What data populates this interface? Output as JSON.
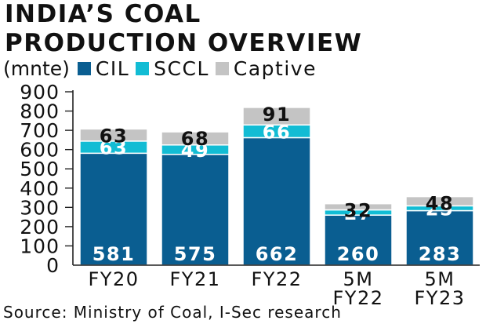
{
  "title_line1": "INDIA’S COAL",
  "title_line2": "PRODUCTION OVERVIEW",
  "unit": "(mnte)",
  "source": "Source: Ministry of Coal, I-Sec research",
  "colors": {
    "CIL": "#0a5e91",
    "SCCL": "#12bcd4",
    "Captive": "#c4c4c4"
  },
  "chart_data": {
    "type": "bar",
    "stacked": true,
    "title": "INDIA’S COAL PRODUCTION OVERVIEW",
    "ylabel": "(mnte)",
    "ylim": [
      0,
      900
    ],
    "yticks": [
      0,
      100,
      200,
      300,
      400,
      500,
      600,
      700,
      800,
      900
    ],
    "categories": [
      [
        "FY20"
      ],
      [
        "FY21"
      ],
      [
        "FY22"
      ],
      [
        "5M",
        "FY22"
      ],
      [
        "5M",
        "FY23"
      ]
    ],
    "series": [
      {
        "name": "CIL",
        "values": [
          581,
          575,
          662,
          260,
          283
        ]
      },
      {
        "name": "SCCL",
        "values": [
          63,
          49,
          66,
          27,
          25
        ]
      },
      {
        "name": "Captive",
        "values": [
          63,
          68,
          91,
          32,
          48
        ]
      }
    ],
    "legend": "top"
  }
}
